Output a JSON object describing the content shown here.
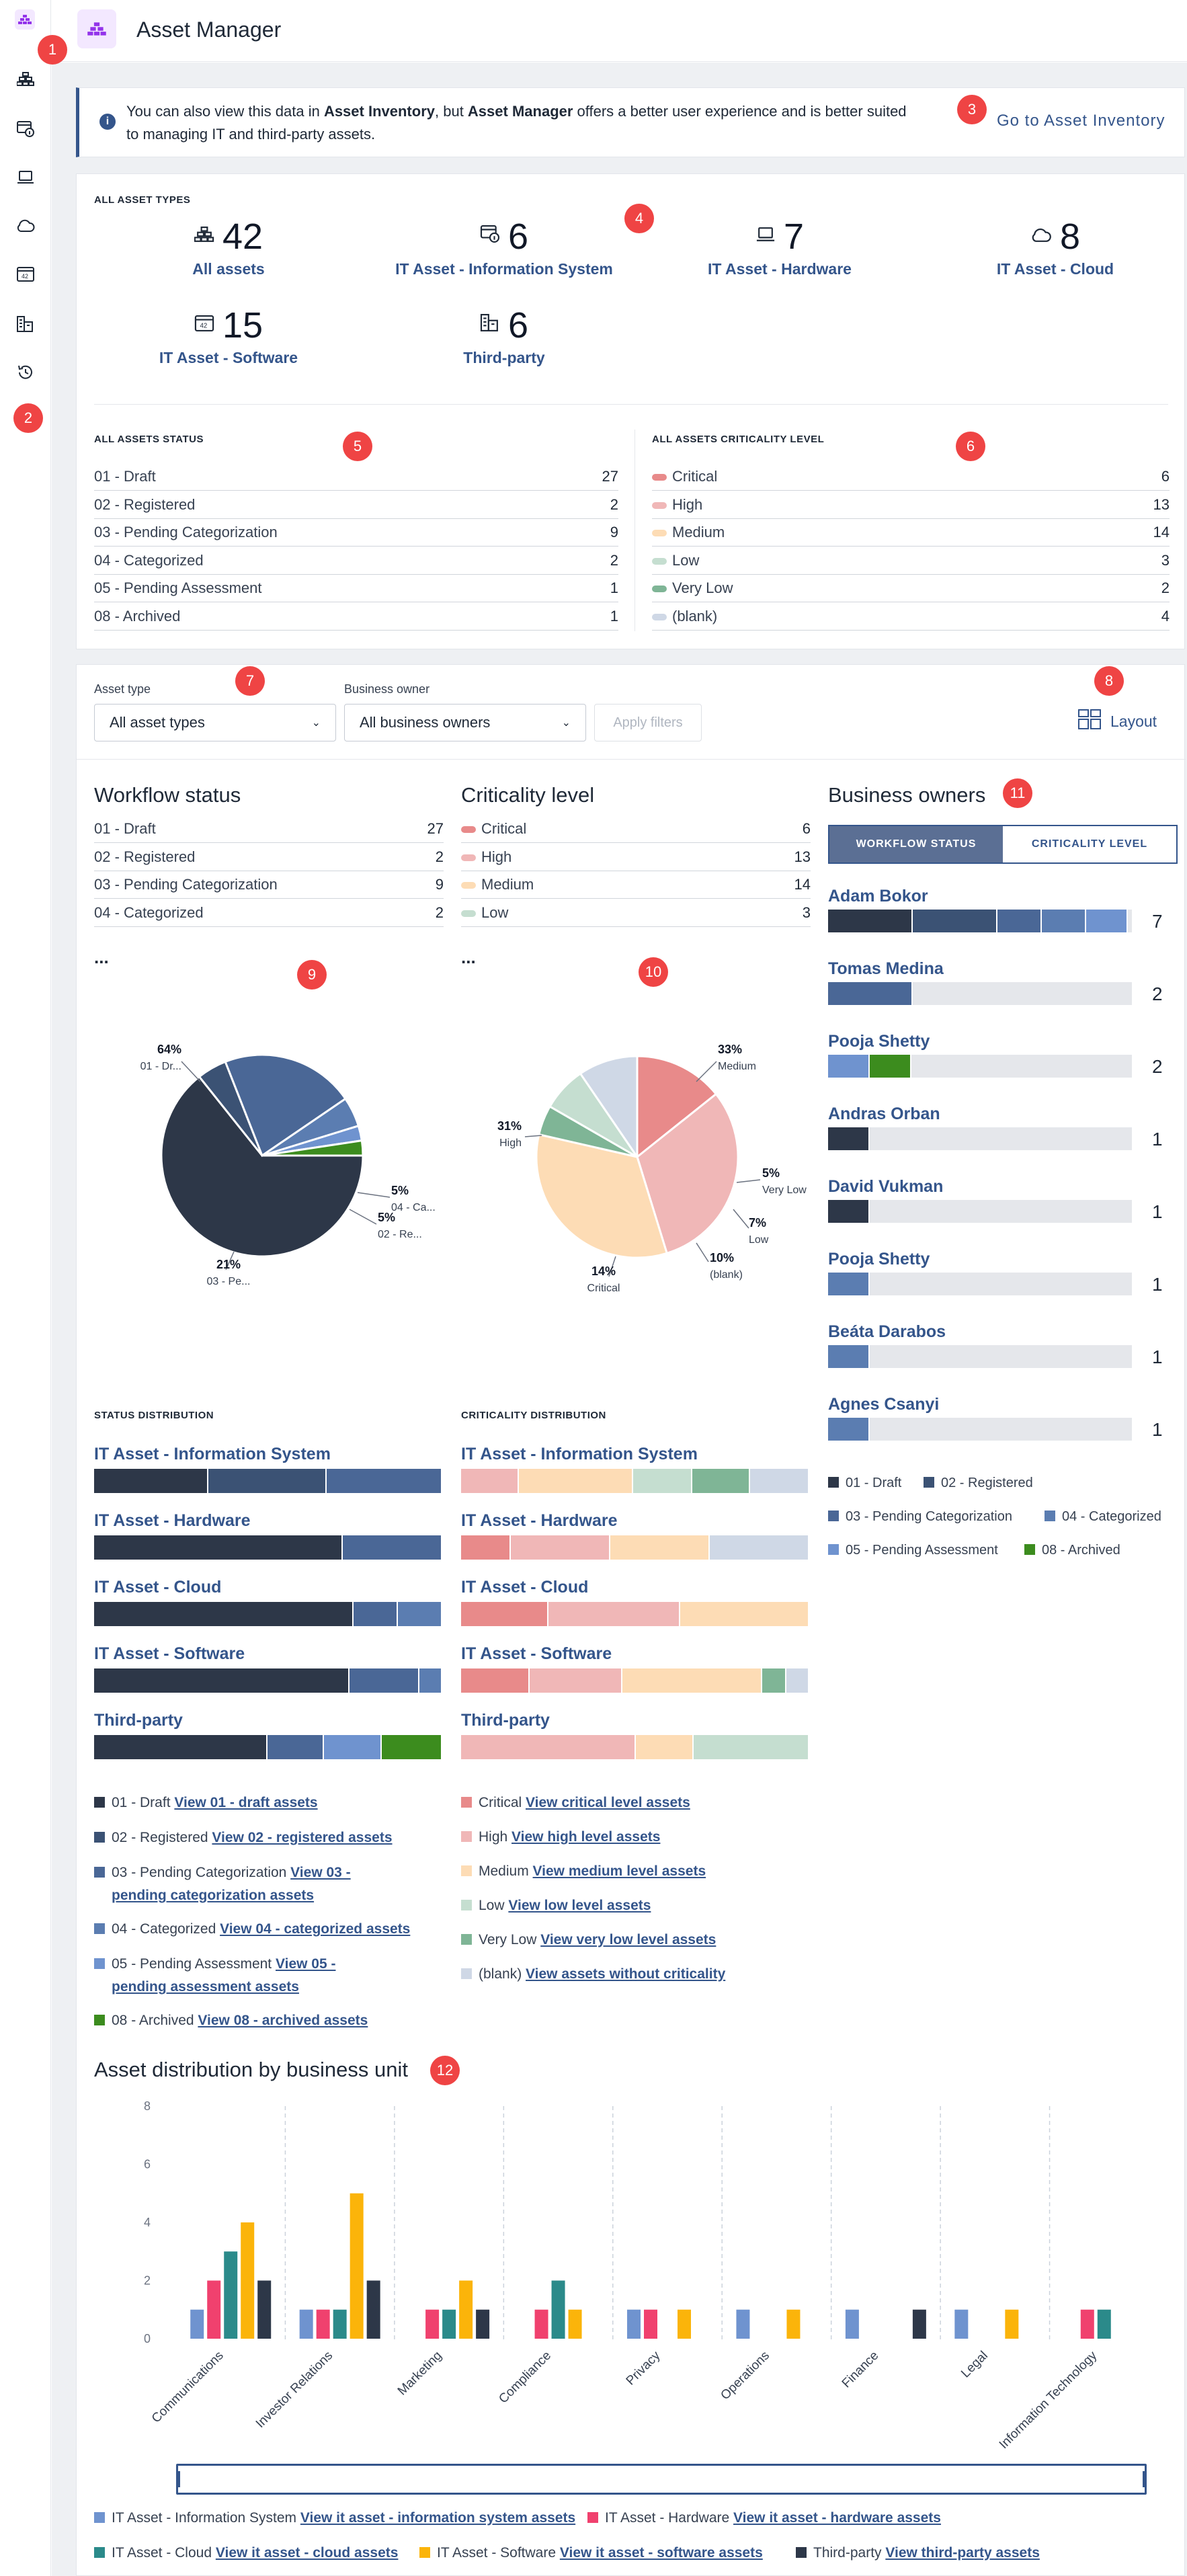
{
  "app": {
    "title": "Asset Manager"
  },
  "sidebar": {
    "icons": [
      "app-logo-icon",
      "asset-stack-icon",
      "info-system-icon",
      "laptop-icon",
      "cloud-icon",
      "software-icon",
      "third-party-icon",
      "history-icon"
    ]
  },
  "annotations": [
    "1",
    "2",
    "3",
    "4",
    "5",
    "6",
    "7",
    "8",
    "9",
    "10",
    "11",
    "12"
  ],
  "banner": {
    "text_a": "You can also view this data in ",
    "text_b": "Asset Inventory",
    "text_c": ", but ",
    "text_d": "Asset Manager",
    "text_e": " offers a better user experience and is better suited",
    "text_f": "to managing IT and third-party assets.",
    "link": "Go to Asset Inventory"
  },
  "asset_types": {
    "heading": "ALL ASSET TYPES",
    "tiles": [
      {
        "icon": "asset-stack-icon",
        "count": "42",
        "label": "All assets"
      },
      {
        "icon": "info-system-icon",
        "count": "6",
        "label": "IT Asset - Information System"
      },
      {
        "icon": "laptop-icon",
        "count": "7",
        "label": "IT Asset - Hardware"
      },
      {
        "icon": "cloud-icon",
        "count": "8",
        "label": "IT Asset - Cloud"
      },
      {
        "icon": "software-icon",
        "count": "15",
        "label": "IT Asset - Software"
      },
      {
        "icon": "third-party-icon",
        "count": "6",
        "label": "Third-party"
      }
    ]
  },
  "status_summary": {
    "heading": "ALL ASSETS STATUS",
    "rows": [
      {
        "label": "01 - Draft",
        "value": "27"
      },
      {
        "label": "02 - Registered",
        "value": "2"
      },
      {
        "label": "03 - Pending Categorization",
        "value": "9"
      },
      {
        "label": "04 - Categorized",
        "value": "2"
      },
      {
        "label": "05 - Pending Assessment",
        "value": "1"
      },
      {
        "label": "08 - Archived",
        "value": "1"
      }
    ]
  },
  "criticality_summary": {
    "heading": "ALL ASSETS CRITICALITY LEVEL",
    "rows": [
      {
        "label": "Critical",
        "value": "6",
        "color": "#e88a8a"
      },
      {
        "label": "High",
        "value": "13",
        "color": "#f0b7b7"
      },
      {
        "label": "Medium",
        "value": "14",
        "color": "#fddcb5"
      },
      {
        "label": "Low",
        "value": "3",
        "color": "#c5ded0"
      },
      {
        "label": "Very Low",
        "value": "2",
        "color": "#7fb596"
      },
      {
        "label": "(blank)",
        "value": "4",
        "color": "#cfd8e6"
      }
    ]
  },
  "filters": {
    "asset_type_label": "Asset type",
    "asset_type_value": "All asset types",
    "owner_label": "Business owner",
    "owner_value": "All business owners",
    "apply": "Apply filters",
    "layout": "Layout"
  },
  "workflow": {
    "title": "Workflow status",
    "rows": [
      {
        "label": "01 - Draft",
        "value": "27"
      },
      {
        "label": "02 - Registered",
        "value": "2"
      },
      {
        "label": "03 - Pending Categorization",
        "value": "9"
      },
      {
        "label": "04 - Categorized",
        "value": "2"
      }
    ],
    "more": "...",
    "pie_labels": [
      {
        "pct": "64%",
        "name": "01 - Dr..."
      },
      {
        "pct": "21%",
        "name": "03 - Pe..."
      },
      {
        "pct": "5%",
        "name": "02 - Re..."
      },
      {
        "pct": "5%",
        "name": "04 - Ca..."
      }
    ]
  },
  "criticality": {
    "title": "Criticality level",
    "rows": [
      {
        "label": "Critical",
        "value": "6",
        "color": "#e88a8a"
      },
      {
        "label": "High",
        "value": "13",
        "color": "#f0b7b7"
      },
      {
        "label": "Medium",
        "value": "14",
        "color": "#fddcb5"
      },
      {
        "label": "Low",
        "value": "3",
        "color": "#c5ded0"
      }
    ],
    "more": "...",
    "pie_labels": [
      {
        "pct": "33%",
        "name": "Medium"
      },
      {
        "pct": "31%",
        "name": "High"
      },
      {
        "pct": "14%",
        "name": "Critical"
      },
      {
        "pct": "10%",
        "name": "(blank)"
      },
      {
        "pct": "7%",
        "name": "Low"
      },
      {
        "pct": "5%",
        "name": "Very Low"
      }
    ]
  },
  "owners": {
    "title": "Business owners",
    "tab_workflow": "WORKFLOW STATUS",
    "tab_criticality": "CRITICALITY LEVEL",
    "list": [
      {
        "name": "Adam Bokor",
        "count": "7"
      },
      {
        "name": "Tomas Medina",
        "count": "2"
      },
      {
        "name": "Pooja Shetty",
        "count": "2"
      },
      {
        "name": "Andras Orban",
        "count": "1"
      },
      {
        "name": "David Vukman",
        "count": "1"
      },
      {
        "name": "Pooja Shetty",
        "count": "1"
      },
      {
        "name": "Beáta Darabos",
        "count": "1"
      },
      {
        "name": "Agnes Csanyi",
        "count": "1"
      }
    ],
    "legend": [
      "01 - Draft",
      "02 - Registered",
      "03 - Pending Categorization",
      "04 - Categorized",
      "05 - Pending Assessment",
      "08 - Archived"
    ]
  },
  "status_colors": {
    "draft": "#2d3748",
    "registered": "#3b5274",
    "pending_cat": "#4a6796",
    "categorized": "#5b7db1",
    "pending_assess": "#6f93cf",
    "archived": "#3c8c1e"
  },
  "status_distribution": {
    "heading": "STATUS DISTRIBUTION",
    "types": [
      "IT Asset - Information System",
      "IT Asset - Hardware",
      "IT Asset - Cloud",
      "IT Asset - Software",
      "Third-party"
    ],
    "legend": [
      {
        "label": "01 - Draft ",
        "link": "View 01 - draft assets"
      },
      {
        "label": "02 - Registered ",
        "link": "View 02 - registered assets"
      },
      {
        "label": "03 - Pending Categorization ",
        "link": "View 03 -"
      },
      {
        "label": "04 - Categorized ",
        "link": "View 04 - categorized assets"
      },
      {
        "label": "05 - Pending Assessment ",
        "link": "View 05 -"
      },
      {
        "label": "08 - Archived ",
        "link": "View 08 - archived assets"
      }
    ],
    "legend_wrap_3": "pending categorization assets",
    "legend_wrap_5": "pending assessment assets"
  },
  "criticality_distribution": {
    "heading": "CRITICALITY DISTRIBUTION",
    "types": [
      "IT Asset - Information System",
      "IT Asset - Hardware",
      "IT Asset - Cloud",
      "IT Asset - Software",
      "Third-party"
    ],
    "legend": [
      {
        "label": "Critical ",
        "link": "View critical level assets"
      },
      {
        "label": "High ",
        "link": "View high level assets"
      },
      {
        "label": "Medium ",
        "link": "View medium level assets"
      },
      {
        "label": "Low ",
        "link": "View low level assets"
      },
      {
        "label": "Very Low ",
        "link": "View very low level assets"
      },
      {
        "label": "(blank) ",
        "link": "View assets without criticality"
      }
    ]
  },
  "business_unit": {
    "title": "Asset distribution by business unit",
    "legend": [
      {
        "label": "IT Asset - Information System ",
        "link": "View it asset - information system assets"
      },
      {
        "label": "IT Asset - Hardware ",
        "link": "View it asset - hardware assets"
      },
      {
        "label": "IT Asset - Cloud ",
        "link": "View it asset - cloud assets"
      },
      {
        "label": "IT Asset - Software ",
        "link": "View it asset - software assets"
      },
      {
        "label": "Third-party ",
        "link": "View third-party assets"
      }
    ]
  },
  "chart_data": [
    {
      "type": "pie",
      "title": "Workflow status",
      "labels": [
        "01 - Draft",
        "02 - Registered",
        "03 - Pending Categorization",
        "04 - Categorized",
        "05 - Pending Assessment",
        "08 - Archived"
      ],
      "values": [
        27,
        2,
        9,
        2,
        1,
        1
      ],
      "colors": [
        "#2d3748",
        "#3b5274",
        "#4a6796",
        "#5b7db1",
        "#6f93cf",
        "#3c8c1e"
      ]
    },
    {
      "type": "pie",
      "title": "Criticality level",
      "labels": [
        "Critical",
        "High",
        "Medium",
        "Very Low",
        "Low",
        "(blank)"
      ],
      "values": [
        6,
        13,
        14,
        2,
        3,
        4
      ],
      "colors": [
        "#e88a8a",
        "#f0b7b7",
        "#fddcb5",
        "#7fb596",
        "#c5ded0",
        "#cfd8e6"
      ]
    },
    {
      "type": "bar",
      "title": "Asset distribution by business unit",
      "categories": [
        "Communications",
        "Investor Relations",
        "Marketing",
        "Compliance",
        "Privacy",
        "Operations",
        "Finance",
        "Legal",
        "Information Technology"
      ],
      "ylim": [
        0,
        8
      ],
      "yticks": [
        0,
        2,
        4,
        6,
        8
      ],
      "series": [
        {
          "name": "IT Asset - Information System",
          "color": "#6f93cf",
          "values": [
            1,
            1,
            0,
            0,
            1,
            1,
            1,
            1,
            0
          ]
        },
        {
          "name": "IT Asset - Hardware",
          "color": "#f0416e",
          "values": [
            2,
            1,
            1,
            1,
            1,
            0,
            0,
            0,
            1
          ]
        },
        {
          "name": "IT Asset - Cloud",
          "color": "#2b8a8a",
          "values": [
            3,
            1,
            1,
            2,
            0,
            0,
            0,
            0,
            1
          ]
        },
        {
          "name": "IT Asset - Software",
          "color": "#fbb40a",
          "values": [
            4,
            5,
            2,
            1,
            1,
            1,
            0,
            1,
            0
          ]
        },
        {
          "name": "Third-party",
          "color": "#2d3748",
          "values": [
            2,
            2,
            1,
            0,
            0,
            0,
            1,
            0,
            0
          ]
        }
      ]
    }
  ]
}
